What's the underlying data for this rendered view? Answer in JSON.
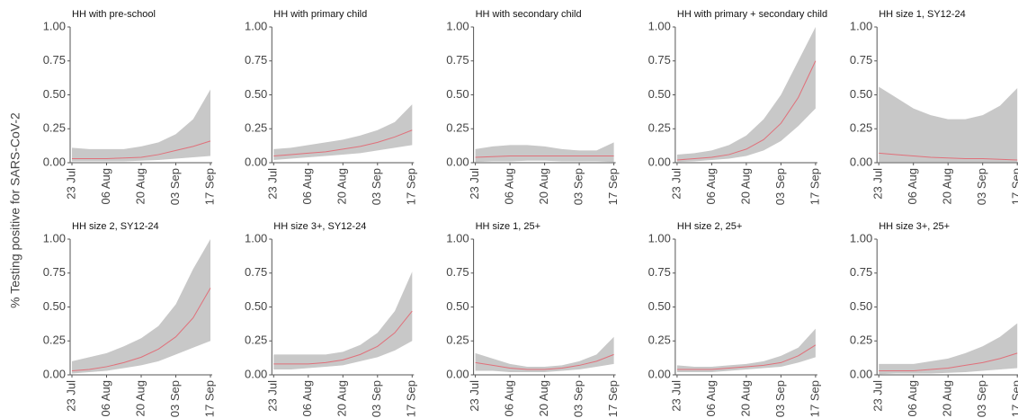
{
  "ylabel": "% Testing positive for SARS-CoV-2",
  "chart_data": [
    {
      "type": "line",
      "title": "HH with pre-school",
      "x": [
        "23 Jul",
        null,
        "06 Aug",
        null,
        "20 Aug",
        null,
        "03 Sep",
        null,
        "17 Sep"
      ],
      "values": [
        0.03,
        0.03,
        0.03,
        0.035,
        0.04,
        0.06,
        0.09,
        0.12,
        0.16
      ],
      "lower": [
        0.01,
        0.01,
        0.01,
        0.01,
        0.015,
        0.02,
        0.03,
        0.04,
        0.05
      ],
      "upper": [
        0.11,
        0.1,
        0.1,
        0.1,
        0.12,
        0.15,
        0.21,
        0.32,
        0.54
      ],
      "color": "#e0707a",
      "band_color": "#c8c8c8",
      "ylim": [
        0,
        1
      ],
      "yticks": [
        {
          "value": 0,
          "label": "0.00"
        },
        {
          "value": 0.25,
          "label": "0.25"
        },
        {
          "value": 0.5,
          "label": "0.50"
        },
        {
          "value": 0.75,
          "label": "0.75"
        },
        {
          "value": 1,
          "label": "1.00"
        }
      ]
    },
    {
      "type": "line",
      "title": "HH with primary child",
      "x": [
        "23 Jul",
        null,
        "06 Aug",
        null,
        "20 Aug",
        null,
        "03 Sep",
        null,
        "17 Sep"
      ],
      "values": [
        0.05,
        0.06,
        0.07,
        0.08,
        0.1,
        0.12,
        0.15,
        0.19,
        0.24
      ],
      "lower": [
        0.02,
        0.03,
        0.04,
        0.05,
        0.06,
        0.07,
        0.09,
        0.11,
        0.13
      ],
      "upper": [
        0.1,
        0.11,
        0.13,
        0.15,
        0.17,
        0.2,
        0.24,
        0.3,
        0.43
      ],
      "color": "#e0707a",
      "band_color": "#c8c8c8",
      "ylim": [
        0,
        1
      ],
      "yticks": [
        {
          "value": 0,
          "label": "0.00"
        },
        {
          "value": 0.25,
          "label": "0.25"
        },
        {
          "value": 0.5,
          "label": "0.50"
        },
        {
          "value": 0.75,
          "label": "0.75"
        },
        {
          "value": 1,
          "label": "1.00"
        }
      ]
    },
    {
      "type": "line",
      "title": "HH with secondary child",
      "x": [
        "23 Jul",
        null,
        "06 Aug",
        null,
        "20 Aug",
        null,
        "03 Sep",
        null,
        "17 Sep"
      ],
      "values": [
        0.04,
        0.045,
        0.05,
        0.05,
        0.05,
        0.05,
        0.05,
        0.05,
        0.05
      ],
      "lower": [
        0.005,
        0.01,
        0.01,
        0.015,
        0.015,
        0.01,
        0.01,
        0.01,
        0.005
      ],
      "upper": [
        0.1,
        0.12,
        0.13,
        0.13,
        0.12,
        0.1,
        0.09,
        0.09,
        0.15
      ],
      "color": "#e0707a",
      "band_color": "#c8c8c8",
      "ylim": [
        0,
        1
      ],
      "yticks": [
        {
          "value": 0,
          "label": "0.00"
        },
        {
          "value": 0.25,
          "label": "0.25"
        },
        {
          "value": 0.5,
          "label": "0.50"
        },
        {
          "value": 0.75,
          "label": "0.75"
        },
        {
          "value": 1,
          "label": "1.00"
        }
      ]
    },
    {
      "type": "line",
      "title": "HH with primary + secondary child",
      "x": [
        "23 Jul",
        null,
        "06 Aug",
        null,
        "20 Aug",
        null,
        "03 Sep",
        null,
        "17 Sep"
      ],
      "values": [
        0.02,
        0.03,
        0.04,
        0.06,
        0.1,
        0.17,
        0.29,
        0.48,
        0.75
      ],
      "lower": [
        0.005,
        0.01,
        0.02,
        0.03,
        0.05,
        0.09,
        0.16,
        0.27,
        0.4
      ],
      "upper": [
        0.06,
        0.07,
        0.09,
        0.13,
        0.2,
        0.32,
        0.5,
        0.75,
        1.0
      ],
      "color": "#e0707a",
      "band_color": "#c8c8c8",
      "ylim": [
        0,
        1
      ],
      "yticks": [
        {
          "value": 0,
          "label": "0.00"
        },
        {
          "value": 0.25,
          "label": "0.25"
        },
        {
          "value": 0.5,
          "label": "0.50"
        },
        {
          "value": 0.75,
          "label": "0.75"
        },
        {
          "value": 1,
          "label": "1.00"
        }
      ]
    },
    {
      "type": "line",
      "title": "HH size 1, SY12-24",
      "x": [
        "23 Jul",
        null,
        "06 Aug",
        null,
        "20 Aug",
        null,
        "03 Sep",
        null,
        "17 Sep"
      ],
      "values": [
        0.07,
        0.06,
        0.05,
        0.04,
        0.035,
        0.03,
        0.03,
        0.025,
        0.02
      ],
      "lower": [
        0.005,
        0.005,
        0.005,
        0.005,
        0.005,
        0.005,
        0.005,
        0.005,
        0.005
      ],
      "upper": [
        0.56,
        0.48,
        0.4,
        0.35,
        0.32,
        0.32,
        0.35,
        0.42,
        0.55
      ],
      "color": "#e0707a",
      "band_color": "#c8c8c8",
      "ylim": [
        0,
        1
      ],
      "yticks": [
        {
          "value": 0,
          "label": "0.00"
        },
        {
          "value": 0.25,
          "label": "0.25"
        },
        {
          "value": 0.5,
          "label": "0.50"
        },
        {
          "value": 0.75,
          "label": "0.75"
        },
        {
          "value": 1,
          "label": "1.00"
        }
      ]
    },
    {
      "type": "line",
      "title": "HH size 2, SY12-24",
      "x": [
        "23 Jul",
        null,
        "06 Aug",
        null,
        "20 Aug",
        null,
        "03 Sep",
        null,
        "17 Sep"
      ],
      "values": [
        0.03,
        0.04,
        0.06,
        0.09,
        0.13,
        0.19,
        0.28,
        0.42,
        0.64
      ],
      "lower": [
        0.01,
        0.02,
        0.03,
        0.05,
        0.07,
        0.1,
        0.15,
        0.2,
        0.25
      ],
      "upper": [
        0.1,
        0.13,
        0.16,
        0.21,
        0.27,
        0.36,
        0.52,
        0.78,
        1.0
      ],
      "color": "#e0707a",
      "band_color": "#c8c8c8",
      "ylim": [
        0,
        1
      ],
      "yticks": [
        {
          "value": 0,
          "label": "0.00"
        },
        {
          "value": 0.25,
          "label": "0.25"
        },
        {
          "value": 0.5,
          "label": "0.50"
        },
        {
          "value": 0.75,
          "label": "0.75"
        },
        {
          "value": 1,
          "label": "1.00"
        }
      ]
    },
    {
      "type": "line",
      "title": "HH size 3+, SY12-24",
      "x": [
        "23 Jul",
        null,
        "06 Aug",
        null,
        "20 Aug",
        null,
        "03 Sep",
        null,
        "17 Sep"
      ],
      "values": [
        0.08,
        0.08,
        0.08,
        0.09,
        0.11,
        0.15,
        0.21,
        0.31,
        0.47
      ],
      "lower": [
        0.04,
        0.04,
        0.05,
        0.06,
        0.07,
        0.1,
        0.13,
        0.18,
        0.25
      ],
      "upper": [
        0.15,
        0.15,
        0.15,
        0.15,
        0.17,
        0.22,
        0.31,
        0.47,
        0.76
      ],
      "color": "#e0707a",
      "band_color": "#c8c8c8",
      "ylim": [
        0,
        1
      ],
      "yticks": [
        {
          "value": 0,
          "label": "0.00"
        },
        {
          "value": 0.25,
          "label": "0.25"
        },
        {
          "value": 0.5,
          "label": "0.50"
        },
        {
          "value": 0.75,
          "label": "0.75"
        },
        {
          "value": 1,
          "label": "1.00"
        }
      ]
    },
    {
      "type": "line",
      "title": "HH size 1, 25+",
      "x": [
        "23 Jul",
        null,
        "06 Aug",
        null,
        "20 Aug",
        null,
        "03 Sep",
        null,
        "17 Sep"
      ],
      "values": [
        0.09,
        0.07,
        0.05,
        0.04,
        0.04,
        0.05,
        0.07,
        0.1,
        0.15
      ],
      "lower": [
        0.03,
        0.03,
        0.02,
        0.02,
        0.02,
        0.03,
        0.04,
        0.06,
        0.08
      ],
      "upper": [
        0.16,
        0.12,
        0.08,
        0.06,
        0.06,
        0.07,
        0.1,
        0.15,
        0.28
      ],
      "color": "#e0707a",
      "band_color": "#c8c8c8",
      "ylim": [
        0,
        1
      ],
      "yticks": [
        {
          "value": 0,
          "label": "0.00"
        },
        {
          "value": 0.25,
          "label": "0.25"
        },
        {
          "value": 0.5,
          "label": "0.50"
        },
        {
          "value": 0.75,
          "label": "0.75"
        },
        {
          "value": 1,
          "label": "1.00"
        }
      ]
    },
    {
      "type": "line",
      "title": "HH size 2, 25+",
      "x": [
        "23 Jul",
        null,
        "06 Aug",
        null,
        "20 Aug",
        null,
        "03 Sep",
        null,
        "17 Sep"
      ],
      "values": [
        0.04,
        0.04,
        0.04,
        0.05,
        0.06,
        0.07,
        0.09,
        0.14,
        0.22
      ],
      "lower": [
        0.02,
        0.02,
        0.02,
        0.03,
        0.04,
        0.05,
        0.06,
        0.09,
        0.13
      ],
      "upper": [
        0.07,
        0.06,
        0.06,
        0.07,
        0.08,
        0.1,
        0.14,
        0.2,
        0.34
      ],
      "color": "#e0707a",
      "band_color": "#c8c8c8",
      "ylim": [
        0,
        1
      ],
      "yticks": [
        {
          "value": 0,
          "label": "0.00"
        },
        {
          "value": 0.25,
          "label": "0.25"
        },
        {
          "value": 0.5,
          "label": "0.50"
        },
        {
          "value": 0.75,
          "label": "0.75"
        },
        {
          "value": 1,
          "label": "1.00"
        }
      ]
    },
    {
      "type": "line",
      "title": "HH size 3+, 25+",
      "x": [
        "23 Jul",
        null,
        "06 Aug",
        null,
        "20 Aug",
        null,
        "03 Sep",
        null,
        "17 Sep"
      ],
      "values": [
        0.03,
        0.03,
        0.03,
        0.04,
        0.05,
        0.07,
        0.09,
        0.12,
        0.16
      ],
      "lower": [
        0.005,
        0.01,
        0.01,
        0.01,
        0.015,
        0.02,
        0.03,
        0.04,
        0.05
      ],
      "upper": [
        0.08,
        0.08,
        0.08,
        0.1,
        0.12,
        0.16,
        0.21,
        0.28,
        0.38
      ],
      "color": "#e0707a",
      "band_color": "#c8c8c8",
      "ylim": [
        0,
        1
      ],
      "yticks": [
        {
          "value": 0,
          "label": "0.00"
        },
        {
          "value": 0.25,
          "label": "0.25"
        },
        {
          "value": 0.5,
          "label": "0.50"
        },
        {
          "value": 0.75,
          "label": "0.75"
        },
        {
          "value": 1,
          "label": "1.00"
        }
      ]
    }
  ]
}
